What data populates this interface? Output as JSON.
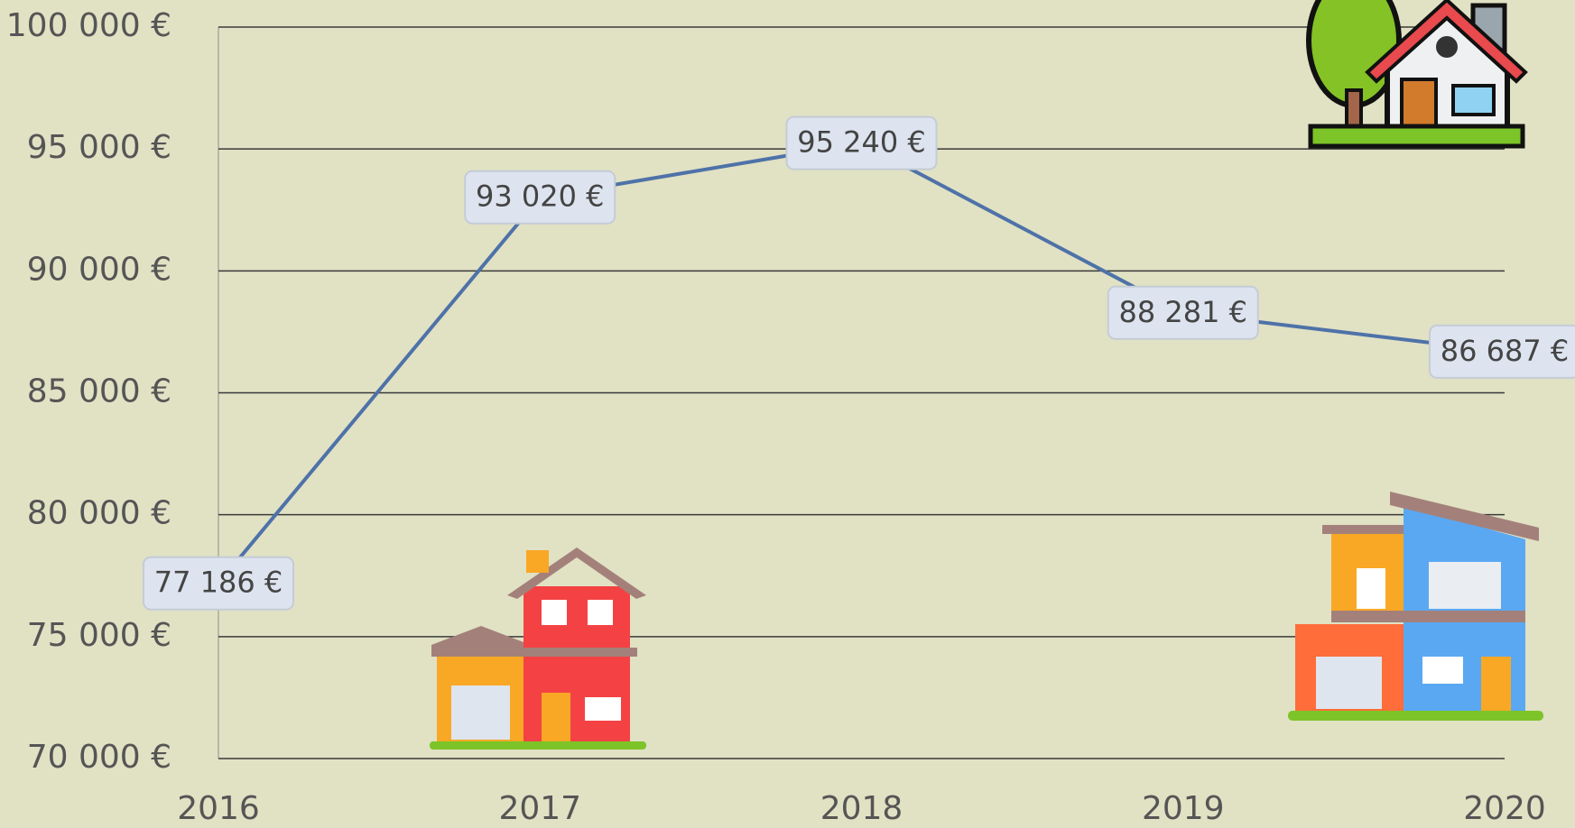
{
  "chart_data": {
    "type": "line",
    "x": [
      2016,
      2017,
      2018,
      2019,
      2020
    ],
    "xlim": [
      2016,
      2020
    ],
    "xticks": [
      2016,
      2017,
      2018,
      2019,
      2020
    ],
    "ylim": [
      70000,
      100000
    ],
    "yticks": [
      {
        "value": 70000,
        "label": "70 000 €"
      },
      {
        "value": 75000,
        "label": "75 000 €"
      },
      {
        "value": 80000,
        "label": "80 000 €"
      },
      {
        "value": 85000,
        "label": "85 000 €"
      },
      {
        "value": 90000,
        "label": "90 000 €"
      },
      {
        "value": 95000,
        "label": "95 000 €"
      },
      {
        "value": 100000,
        "label": "100 000 €"
      }
    ],
    "grid": true,
    "color": "#4e72a8",
    "values": [
      77186,
      93020,
      95240,
      88281,
      86687
    ],
    "value_labels": [
      "77 186 €",
      "93 020 €",
      "95 240 €",
      "88 281 €",
      "86 687 €"
    ]
  }
}
